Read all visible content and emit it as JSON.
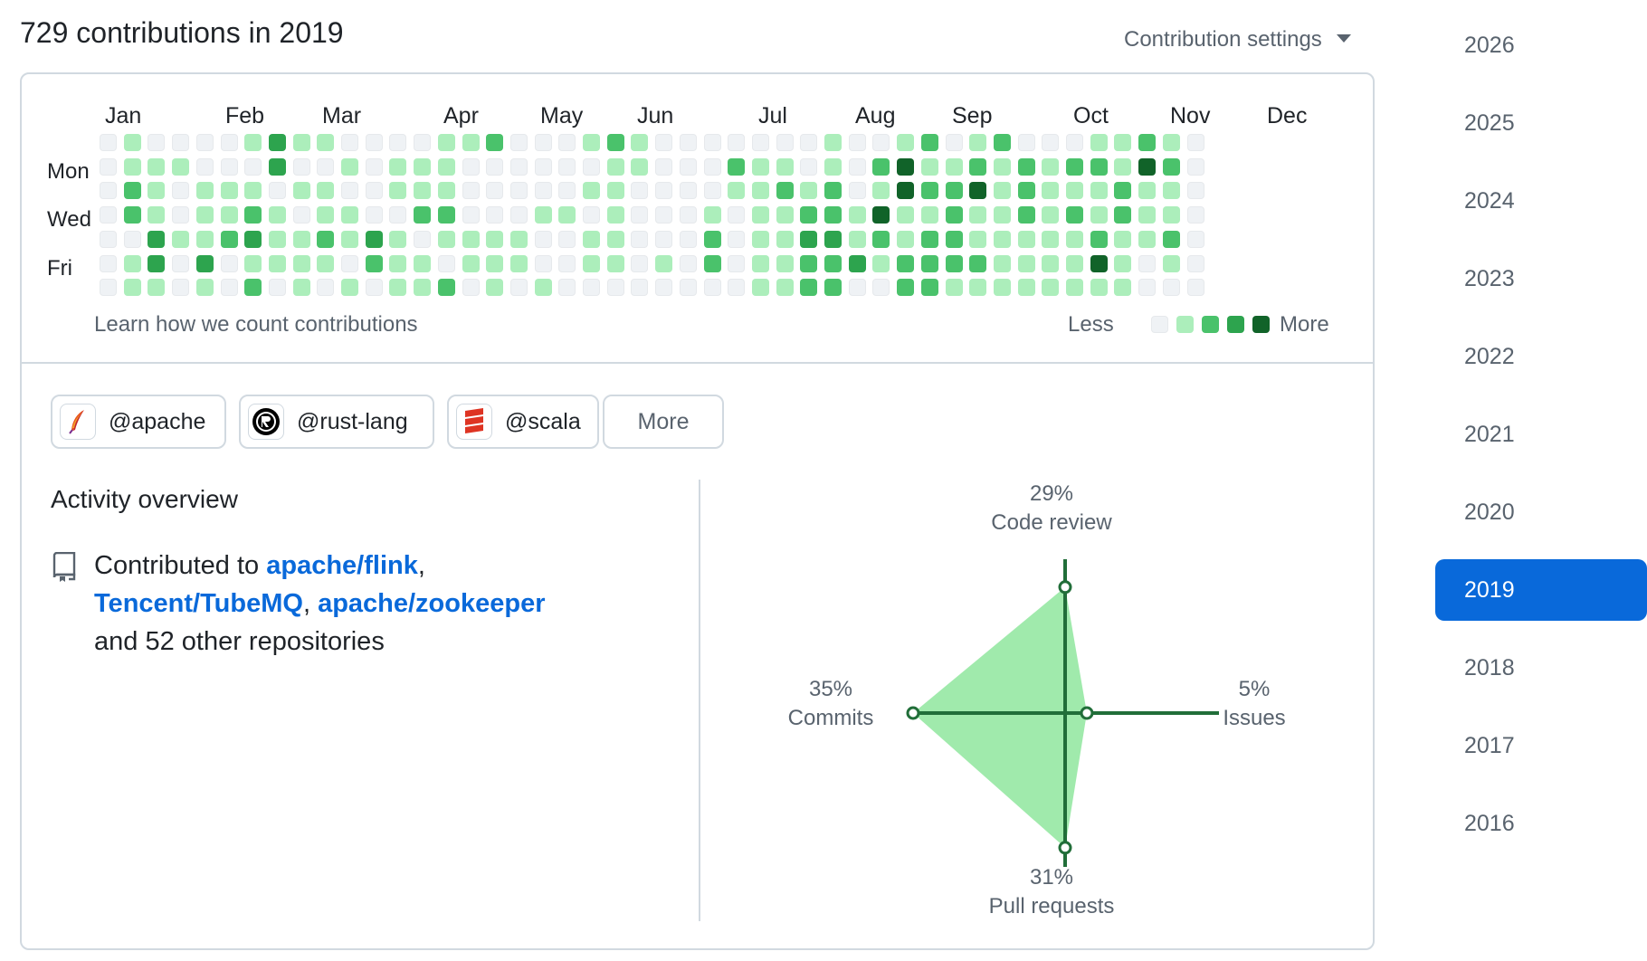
{
  "header": {
    "title": "729 contributions in 2019",
    "settings_label": "Contribution settings"
  },
  "calendar": {
    "months": [
      "Jan",
      "Feb",
      "Mar",
      "Apr",
      "May",
      "Jun",
      "Jul",
      "Aug",
      "Sep",
      "Oct",
      "Nov",
      "Dec"
    ],
    "day_labels": [
      "Mon",
      "Wed",
      "Fri"
    ],
    "learn_link": "Learn how we count contributions",
    "legend_less": "Less",
    "legend_more": "More",
    "level_colors": [
      "#eff2f5",
      "#aceebb",
      "#4ac26b",
      "#2da44e",
      "#116329"
    ],
    "weeks": [
      [
        0,
        0,
        0,
        0,
        0,
        0,
        0
      ],
      [
        1,
        1,
        2,
        2,
        0,
        1,
        1
      ],
      [
        0,
        1,
        1,
        1,
        3,
        3,
        1
      ],
      [
        0,
        1,
        0,
        0,
        1,
        0,
        0
      ],
      [
        0,
        0,
        1,
        1,
        1,
        3,
        1
      ],
      [
        0,
        0,
        1,
        1,
        2,
        0,
        0
      ],
      [
        1,
        0,
        1,
        2,
        3,
        1,
        2
      ],
      [
        3,
        3,
        0,
        1,
        1,
        1,
        0
      ],
      [
        1,
        0,
        1,
        0,
        1,
        1,
        1
      ],
      [
        1,
        0,
        1,
        1,
        2,
        1,
        0
      ],
      [
        0,
        1,
        0,
        1,
        1,
        0,
        1
      ],
      [
        0,
        0,
        0,
        0,
        3,
        2,
        0
      ],
      [
        0,
        1,
        1,
        0,
        1,
        1,
        1
      ],
      [
        0,
        1,
        1,
        2,
        0,
        1,
        1
      ],
      [
        1,
        1,
        1,
        2,
        1,
        0,
        2
      ],
      [
        1,
        0,
        0,
        0,
        1,
        1,
        0
      ],
      [
        2,
        0,
        0,
        0,
        1,
        1,
        1
      ],
      [
        0,
        0,
        0,
        0,
        1,
        1,
        0
      ],
      [
        0,
        0,
        0,
        1,
        0,
        0,
        1
      ],
      [
        0,
        0,
        0,
        1,
        0,
        0,
        0
      ],
      [
        1,
        0,
        1,
        0,
        1,
        1,
        0
      ],
      [
        2,
        1,
        1,
        1,
        1,
        1,
        0
      ],
      [
        1,
        1,
        0,
        0,
        0,
        0,
        0
      ],
      [
        0,
        0,
        0,
        0,
        0,
        1,
        0
      ],
      [
        0,
        0,
        0,
        0,
        0,
        0,
        0
      ],
      [
        0,
        0,
        0,
        1,
        2,
        2,
        0
      ],
      [
        0,
        2,
        1,
        0,
        0,
        0,
        0
      ],
      [
        0,
        1,
        1,
        1,
        1,
        1,
        1
      ],
      [
        0,
        1,
        2,
        1,
        1,
        1,
        1
      ],
      [
        0,
        0,
        1,
        2,
        3,
        2,
        2
      ],
      [
        1,
        1,
        2,
        2,
        3,
        2,
        2
      ],
      [
        0,
        0,
        0,
        1,
        1,
        3,
        0
      ],
      [
        0,
        2,
        1,
        4,
        2,
        1,
        0
      ],
      [
        1,
        4,
        4,
        1,
        1,
        2,
        2
      ],
      [
        2,
        1,
        2,
        1,
        2,
        2,
        2
      ],
      [
        0,
        1,
        2,
        2,
        2,
        2,
        1
      ],
      [
        1,
        2,
        4,
        1,
        1,
        2,
        1
      ],
      [
        2,
        1,
        1,
        1,
        1,
        1,
        1
      ],
      [
        0,
        2,
        2,
        2,
        1,
        1,
        1
      ],
      [
        0,
        1,
        1,
        1,
        1,
        1,
        1
      ],
      [
        0,
        2,
        1,
        2,
        1,
        1,
        1
      ],
      [
        1,
        2,
        1,
        1,
        2,
        4,
        1
      ],
      [
        1,
        1,
        2,
        2,
        1,
        1,
        1
      ],
      [
        2,
        4,
        1,
        1,
        1,
        0,
        0
      ],
      [
        1,
        2,
        1,
        1,
        2,
        1,
        0
      ],
      [
        0,
        0,
        0,
        0,
        0,
        0,
        0
      ]
    ]
  },
  "orgs": [
    {
      "handle": "@apache"
    },
    {
      "handle": "@rust-lang"
    },
    {
      "handle": "@scala"
    }
  ],
  "orgs_more": "More",
  "activity": {
    "title": "Activity overview",
    "prefix": "Contributed to ",
    "repos": [
      "apache/flink",
      "Tencent/TubeMQ",
      "apache/zookeeper"
    ],
    "suffix": "and 52 other repositories"
  },
  "radar": {
    "code_review": {
      "pct": "29%",
      "label": "Code review",
      "value": 29
    },
    "issues": {
      "pct": "5%",
      "label": "Issues",
      "value": 5
    },
    "pull_requests": {
      "pct": "31%",
      "label": "Pull requests",
      "value": 31
    },
    "commits": {
      "pct": "35%",
      "label": "Commits",
      "value": 35
    }
  },
  "years": [
    "2026",
    "2025",
    "2024",
    "2023",
    "2022",
    "2021",
    "2020",
    "2019",
    "2018",
    "2017",
    "2016"
  ],
  "selected_year": "2019"
}
